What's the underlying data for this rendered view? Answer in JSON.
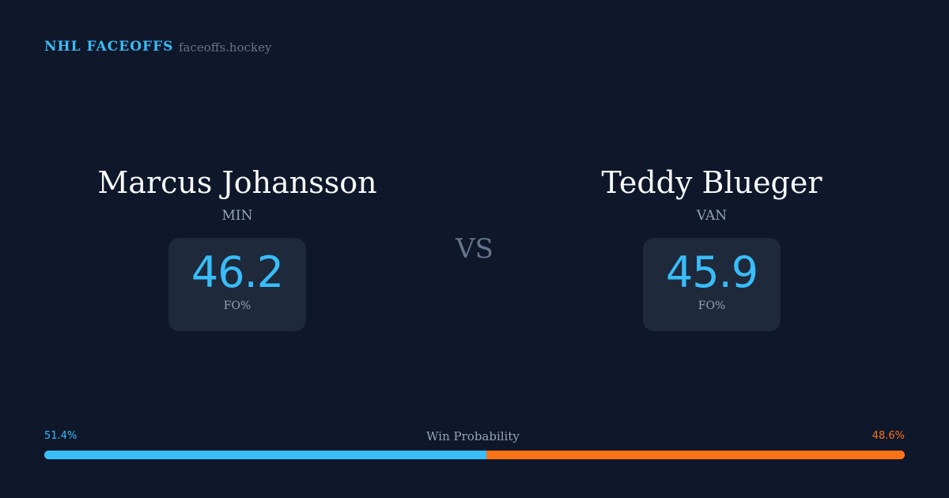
{
  "header": {
    "brand": "NHL FACEOFFS",
    "site": "faceoffs.hockey"
  },
  "players": [
    {
      "name": "Marcus Johansson",
      "team": "MIN",
      "fo_pct": "46.2",
      "fo_label": "FO%"
    },
    {
      "name": "Teddy Blueger",
      "team": "VAN",
      "fo_pct": "45.9",
      "fo_label": "FO%"
    }
  ],
  "vs": "VS",
  "win_probability": {
    "title": "Win Probability",
    "left_label": "51.4%",
    "right_label": "48.6%",
    "left_value": 51.4,
    "right_value": 48.6,
    "left_color": "#38bdf8",
    "right_color": "#f97316"
  }
}
